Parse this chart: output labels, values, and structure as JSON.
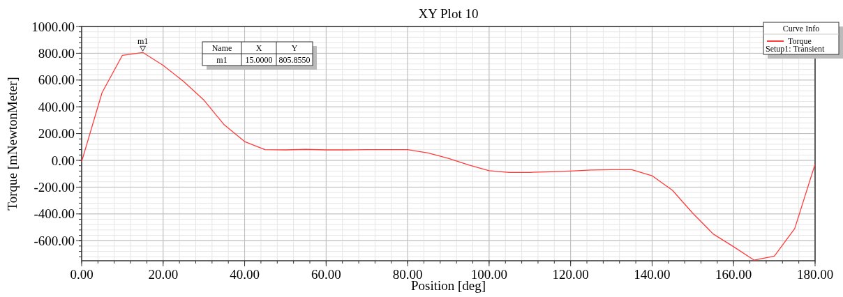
{
  "chart_data": {
    "type": "line",
    "title": "XY Plot 10",
    "xlabel": "Position [deg]",
    "ylabel": "Torque [mNewtonMeter]",
    "legend_title": "Curve Info",
    "legend": "top right",
    "grid": true,
    "marker": "none",
    "line_style": "solid",
    "xlim": [
      0,
      180
    ],
    "xticks": [
      {
        "value": 0,
        "label": "0.00"
      },
      {
        "value": 20,
        "label": "20.00"
      },
      {
        "value": 40,
        "label": "40.00"
      },
      {
        "value": 60,
        "label": "60.00"
      },
      {
        "value": 80,
        "label": "80.00"
      },
      {
        "value": 100,
        "label": "100.00"
      },
      {
        "value": 120,
        "label": "120.00"
      },
      {
        "value": 140,
        "label": "140.00"
      },
      {
        "value": 160,
        "label": "160.00"
      },
      {
        "value": 180,
        "label": "180.00"
      }
    ],
    "ylim": [
      -750,
      1000
    ],
    "yticks": [
      {
        "value": -600,
        "label": "-600.00"
      },
      {
        "value": -400,
        "label": "-400.00"
      },
      {
        "value": -200,
        "label": "-200.00"
      },
      {
        "value": 0,
        "label": "0.00"
      },
      {
        "value": 200,
        "label": "200.00"
      },
      {
        "value": 400,
        "label": "400.00"
      },
      {
        "value": 600,
        "label": "600.00"
      },
      {
        "value": 800,
        "label": "800.00"
      },
      {
        "value": 1000,
        "label": "1000.00"
      }
    ],
    "x": [
      0,
      5,
      10,
      15,
      20,
      25,
      30,
      35,
      40,
      45,
      50,
      55,
      60,
      65,
      70,
      75,
      80,
      85,
      90,
      95,
      100,
      105,
      110,
      115,
      120,
      125,
      130,
      135,
      140,
      145,
      150,
      155,
      160,
      165,
      170,
      175,
      180
    ],
    "series": [
      {
        "name": "Torque",
        "color": "#ff3b3b",
        "values": [
          -10,
          505,
          785,
          805.855,
          710,
          590,
          450,
          265,
          140,
          80,
          78,
          82,
          78,
          78,
          80,
          80,
          80,
          55,
          15,
          -35,
          -78,
          -90,
          -90,
          -85,
          -80,
          -72,
          -70,
          -70,
          -115,
          -224,
          -396,
          -550,
          -645,
          -745,
          -715,
          -510,
          -28
        ]
      }
    ],
    "annotations": [
      {
        "text": "m1",
        "x": 15,
        "y": 805.855
      },
      "Name",
      "X",
      "Y",
      "m1",
      "15.0000",
      "805.8550",
      "Setup1: Transient"
    ]
  }
}
